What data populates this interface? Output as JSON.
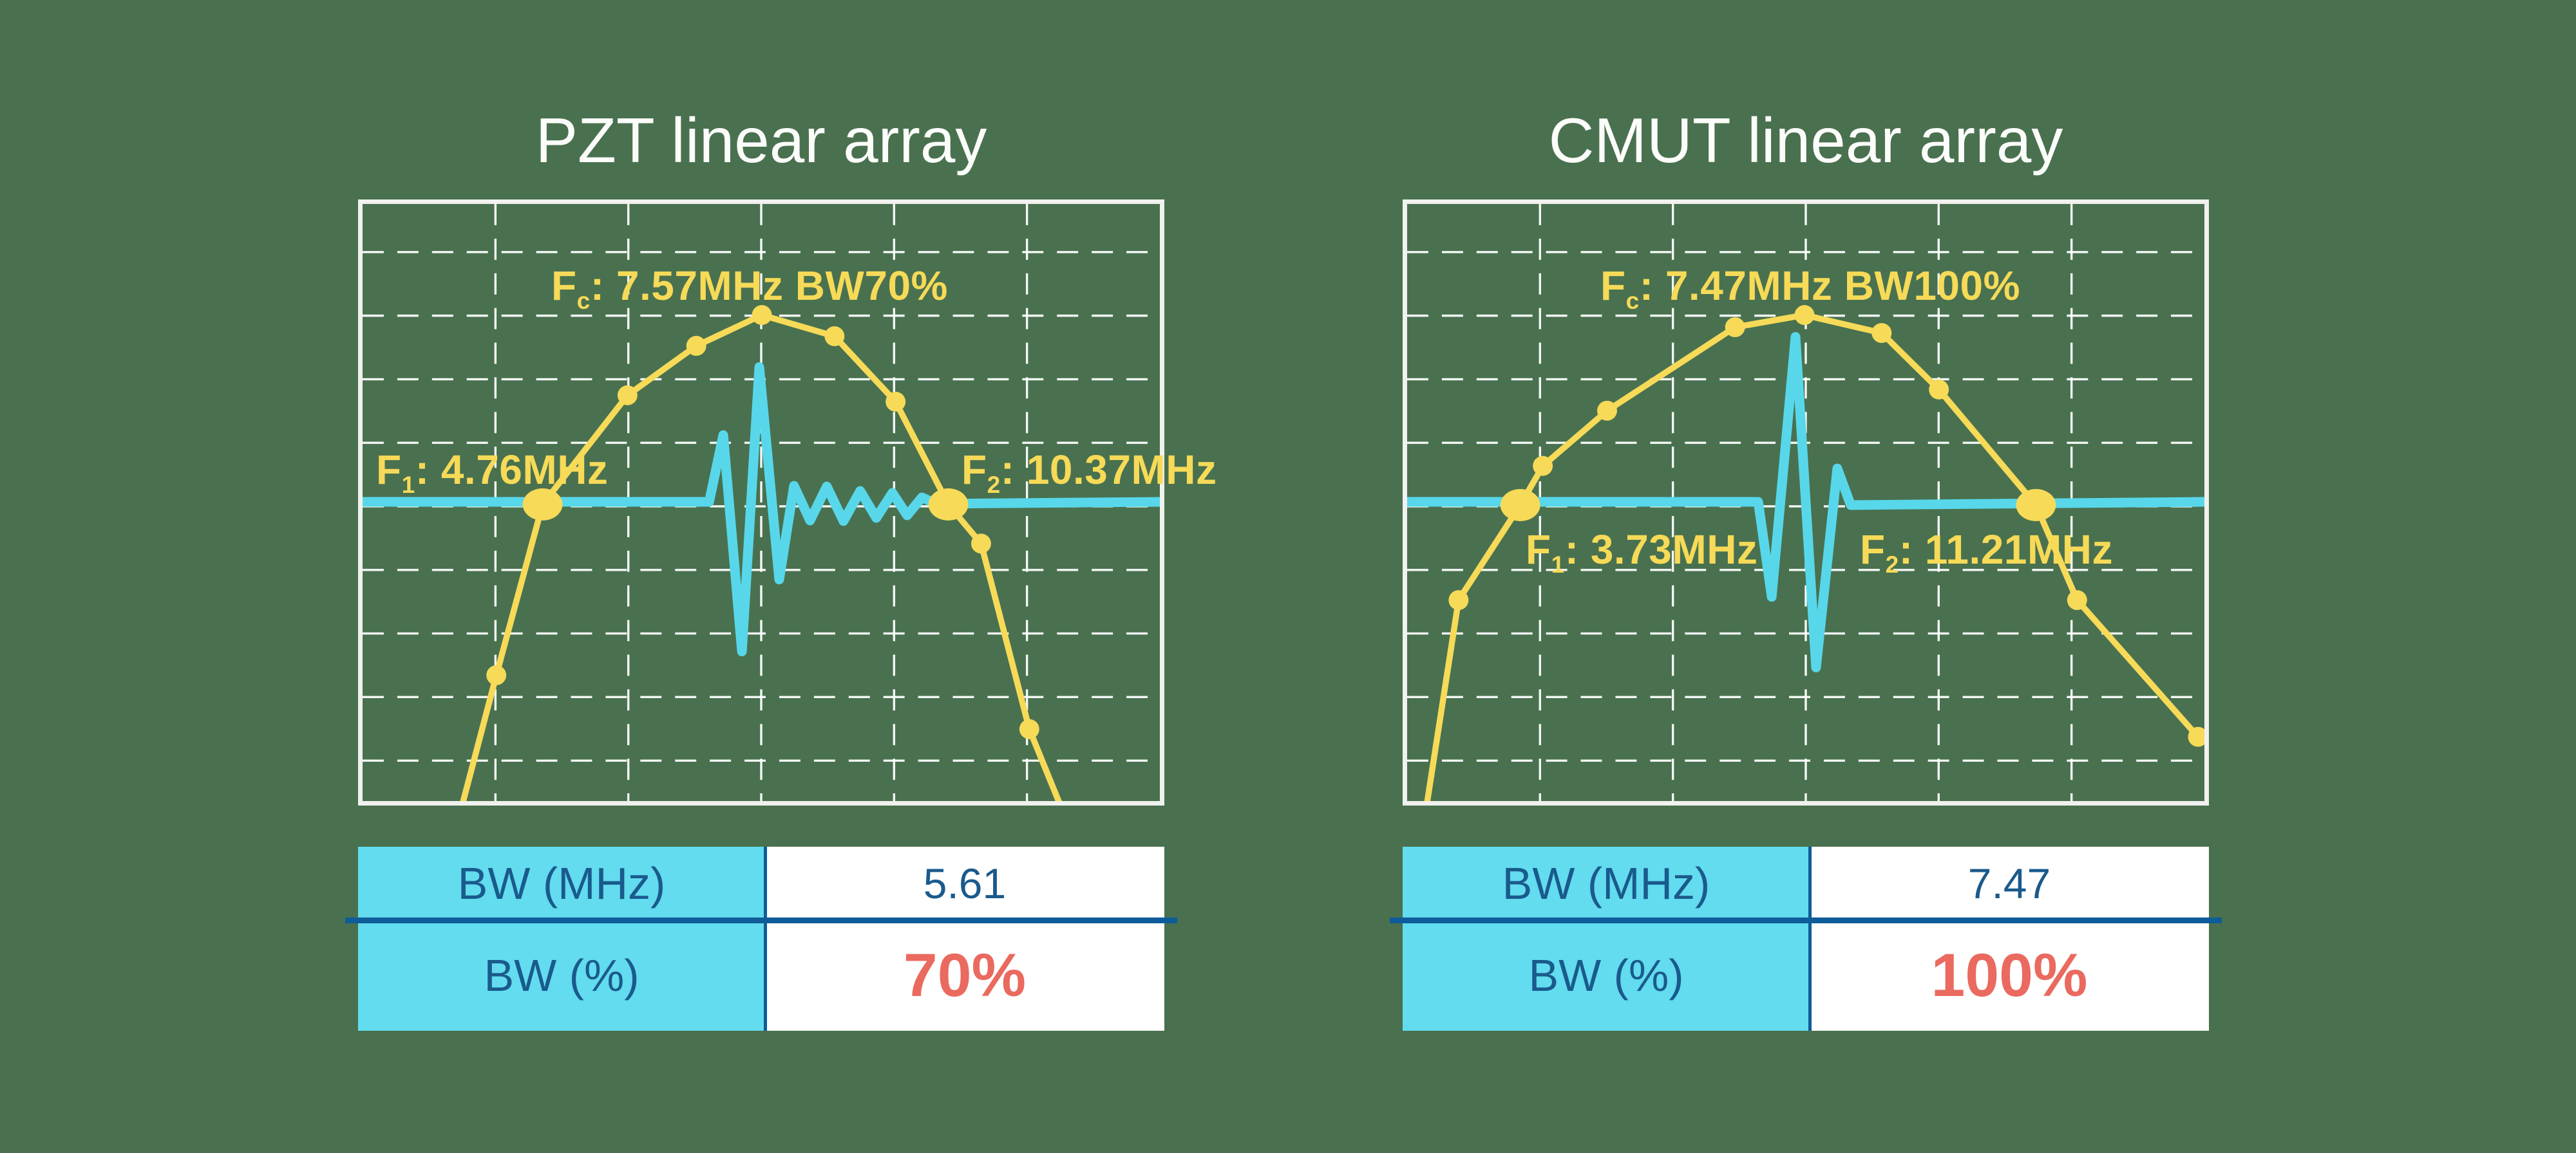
{
  "style": {
    "background_green": "#49714F",
    "accent_yellow": "#F6DA58",
    "accent_cyan": "#58D7EA",
    "table_cyan": "#62DCEE",
    "navy_line": "#0E5C99",
    "navy_text": "#1A5A8C",
    "red_value": "#EA6A5F",
    "frame_white": "#F1F1EF",
    "grid_white": "#FFFFFF"
  },
  "chart_data": [
    {
      "type": "line",
      "title": "PZT linear array",
      "center_frequency_mhz": 7.57,
      "f_low_mhz": 4.76,
      "f_high_mhz": 10.37,
      "bandwidth_mhz": 5.61,
      "bandwidth_pct": 70,
      "annotations": {
        "fc": {
          "base": "F",
          "sub": "c",
          "rest": ": 7.57MHz BW70%"
        },
        "f1": {
          "base": "F",
          "sub": "1",
          "rest": ": 4.76MHz"
        },
        "f2": {
          "base": "F",
          "sub": "2",
          "rest": ": 10.37MHz"
        }
      },
      "series": [
        {
          "name": "frequency-response",
          "color": "#F6DA58",
          "units": "normalized plot coords (1240x930, no axis ticks shown)",
          "points": [
            [
              155,
              936,
              0
            ],
            [
              208,
              734,
              1
            ],
            [
              280,
              468,
              2
            ],
            [
              412,
              298,
              1
            ],
            [
              519,
              221,
              1
            ],
            [
              621,
              173,
              1
            ],
            [
              734,
              206,
              1
            ],
            [
              829,
              308,
              1
            ],
            [
              911,
              468,
              2
            ],
            [
              962,
              529,
              1
            ],
            [
              1037,
              818,
              1
            ],
            [
              1085,
              936,
              0
            ]
          ]
        },
        {
          "name": "pulse-echo-waveform",
          "color": "#58D7EA",
          "baseline_y": 464,
          "points": [
            [
              0,
              464
            ],
            [
              539,
              464
            ],
            [
              561,
              360
            ],
            [
              590,
              697
            ],
            [
              617,
              254
            ],
            [
              648,
              585
            ],
            [
              671,
              439
            ],
            [
              696,
              493
            ],
            [
              722,
              440
            ],
            [
              748,
              494
            ],
            [
              774,
              447
            ],
            [
              799,
              489
            ],
            [
              824,
              450
            ],
            [
              847,
              485
            ],
            [
              870,
              457
            ],
            [
              892,
              467
            ],
            [
              1240,
              464
            ]
          ]
        }
      ],
      "table": {
        "rows": [
          {
            "label": "BW (MHz)",
            "value": "5.61",
            "emphasis": false
          },
          {
            "label": "BW (%)",
            "value": "70%",
            "emphasis": true
          }
        ]
      }
    },
    {
      "type": "line",
      "title": "CMUT linear array",
      "center_frequency_mhz": 7.47,
      "f_low_mhz": 3.73,
      "f_high_mhz": 11.21,
      "bandwidth_mhz": 7.47,
      "bandwidth_pct": 100,
      "annotations": {
        "fc": {
          "base": "F",
          "sub": "c",
          "rest": ": 7.47MHz BW100%"
        },
        "f1": {
          "base": "F",
          "sub": "1",
          "rest": ": 3.73MHz"
        },
        "f2": {
          "base": "F",
          "sub": "2",
          "rest": ": 11.21MHz"
        }
      },
      "series": [
        {
          "name": "frequency-response",
          "color": "#F6DA58",
          "units": "normalized plot coords (1240x930, no axis ticks shown)",
          "points": [
            [
              30,
              939,
              0
            ],
            [
              80,
              617,
              1
            ],
            [
              176,
              469,
              2
            ],
            [
              211,
              408,
              1
            ],
            [
              311,
              322,
              1
            ],
            [
              510,
              192,
              1
            ],
            [
              618,
              173,
              1
            ],
            [
              738,
              201,
              1
            ],
            [
              827,
              289,
              1
            ],
            [
              978,
              469,
              2
            ],
            [
              1042,
              617,
              1
            ],
            [
              1230,
              830,
              1
            ]
          ]
        },
        {
          "name": "pulse-echo-waveform",
          "color": "#58D7EA",
          "baseline_y": 464,
          "points": [
            [
              0,
              464
            ],
            [
              546,
              464
            ],
            [
              567,
              612
            ],
            [
              604,
              207
            ],
            [
              636,
              722
            ],
            [
              669,
              412
            ],
            [
              690,
              469
            ],
            [
              1240,
              464
            ]
          ]
        }
      ],
      "table": {
        "rows": [
          {
            "label": "BW (MHz)",
            "value": "7.47",
            "emphasis": false
          },
          {
            "label": "BW (%)",
            "value": "100%",
            "emphasis": true
          }
        ]
      }
    }
  ],
  "layout_note": "left panel x=556, right panel x=2178, charts 1252x942 at y=310, tables at y=1316"
}
